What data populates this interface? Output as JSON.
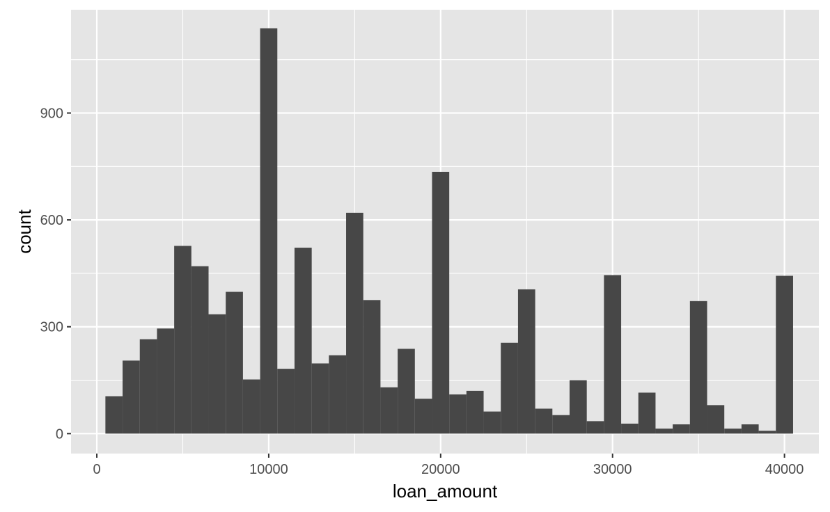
{
  "chart_data": {
    "type": "bar",
    "subtype": "histogram",
    "title": "",
    "xlabel": "loan_amount",
    "ylabel": "count",
    "bin_width": 1000,
    "bins": [
      {
        "x_start": 500,
        "x_end": 1500,
        "count": 105
      },
      {
        "x_start": 1500,
        "x_end": 2500,
        "count": 205
      },
      {
        "x_start": 2500,
        "x_end": 3500,
        "count": 265
      },
      {
        "x_start": 3500,
        "x_end": 4500,
        "count": 295
      },
      {
        "x_start": 4500,
        "x_end": 5500,
        "count": 527
      },
      {
        "x_start": 5500,
        "x_end": 6500,
        "count": 470
      },
      {
        "x_start": 6500,
        "x_end": 7500,
        "count": 335
      },
      {
        "x_start": 7500,
        "x_end": 8500,
        "count": 398
      },
      {
        "x_start": 8500,
        "x_end": 9500,
        "count": 152
      },
      {
        "x_start": 9500,
        "x_end": 10500,
        "count": 1138
      },
      {
        "x_start": 10500,
        "x_end": 11500,
        "count": 182
      },
      {
        "x_start": 11500,
        "x_end": 12500,
        "count": 522
      },
      {
        "x_start": 12500,
        "x_end": 13500,
        "count": 197
      },
      {
        "x_start": 13500,
        "x_end": 14500,
        "count": 220
      },
      {
        "x_start": 14500,
        "x_end": 15500,
        "count": 620
      },
      {
        "x_start": 15500,
        "x_end": 16500,
        "count": 375
      },
      {
        "x_start": 16500,
        "x_end": 17500,
        "count": 130
      },
      {
        "x_start": 17500,
        "x_end": 18500,
        "count": 238
      },
      {
        "x_start": 18500,
        "x_end": 19500,
        "count": 98
      },
      {
        "x_start": 19500,
        "x_end": 20500,
        "count": 735
      },
      {
        "x_start": 20500,
        "x_end": 21500,
        "count": 110
      },
      {
        "x_start": 21500,
        "x_end": 22500,
        "count": 120
      },
      {
        "x_start": 22500,
        "x_end": 23500,
        "count": 62
      },
      {
        "x_start": 23500,
        "x_end": 24500,
        "count": 255
      },
      {
        "x_start": 24500,
        "x_end": 25500,
        "count": 405
      },
      {
        "x_start": 25500,
        "x_end": 26500,
        "count": 70
      },
      {
        "x_start": 26500,
        "x_end": 27500,
        "count": 52
      },
      {
        "x_start": 27500,
        "x_end": 28500,
        "count": 150
      },
      {
        "x_start": 28500,
        "x_end": 29500,
        "count": 35
      },
      {
        "x_start": 29500,
        "x_end": 30500,
        "count": 445
      },
      {
        "x_start": 30500,
        "x_end": 31500,
        "count": 28
      },
      {
        "x_start": 31500,
        "x_end": 32500,
        "count": 115
      },
      {
        "x_start": 32500,
        "x_end": 33500,
        "count": 14
      },
      {
        "x_start": 33500,
        "x_end": 34500,
        "count": 26
      },
      {
        "x_start": 34500,
        "x_end": 35500,
        "count": 372
      },
      {
        "x_start": 35500,
        "x_end": 36500,
        "count": 80
      },
      {
        "x_start": 36500,
        "x_end": 37500,
        "count": 14
      },
      {
        "x_start": 37500,
        "x_end": 38500,
        "count": 26
      },
      {
        "x_start": 38500,
        "x_end": 39500,
        "count": 8
      },
      {
        "x_start": 39500,
        "x_end": 40500,
        "count": 443
      }
    ],
    "xlim": [
      -1500,
      42000
    ],
    "ylim": [
      -56,
      1190
    ],
    "x_ticks": [
      0,
      10000,
      20000,
      30000,
      40000
    ],
    "x_tick_labels": [
      "0",
      "10000",
      "20000",
      "30000",
      "40000"
    ],
    "y_ticks": [
      0,
      300,
      600,
      900
    ],
    "y_tick_labels": [
      "0",
      "300",
      "600",
      "900"
    ],
    "x_minor": [
      5000,
      15000,
      25000,
      35000
    ],
    "y_minor": [
      150,
      450,
      750,
      1050
    ],
    "grid": true,
    "legend": "none",
    "colors": {
      "bar": "#474747",
      "panel": "#e5e5e5",
      "grid": "#ffffff",
      "tick": "#333333",
      "tick_label": "#4d4d4d",
      "axis_title": "#000000"
    }
  }
}
